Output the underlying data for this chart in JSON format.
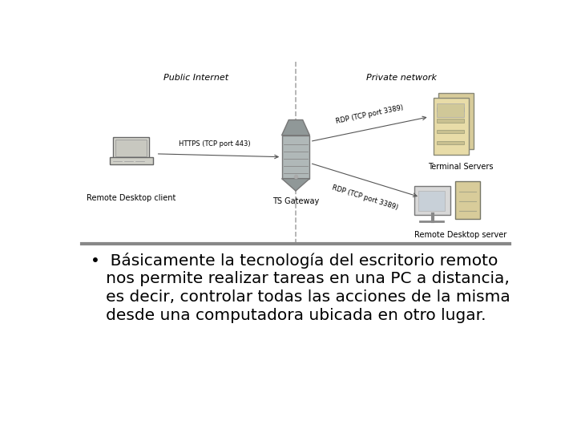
{
  "bg_color": "#ffffff",
  "diagram_bg": "#ffffff",
  "diagram_border_color": "#aaaaaa",
  "divider_color": "#999999",
  "text_color": "#000000",
  "arrow_color": "#555555",
  "label_public": "Public Internet",
  "label_private": "Private network",
  "label_client": "Remote Desktop client",
  "label_gateway": "TS Gateway",
  "label_terminal": "Terminal Servers",
  "label_rdserver": "Remote Desktop server",
  "label_https": "HTTPS (TCP port 443)",
  "label_rdp1": "RDP (TCP port 3389)",
  "label_rdp2": "RDP (TCP port 3389)",
  "bullet_line1": "•  Básicamente la tecnología del escritorio remoto",
  "bullet_line2": "   nos permite realizar tareas en una PC a distancia,",
  "bullet_line3": "   es decir, controlar todas las acciones de la misma",
  "bullet_line4": "   desde una computadora ubicada en otro lugar.",
  "font_size_header": 8.0,
  "font_size_labels": 7.0,
  "font_size_arrow": 6.0,
  "font_size_bullet": 14.5
}
